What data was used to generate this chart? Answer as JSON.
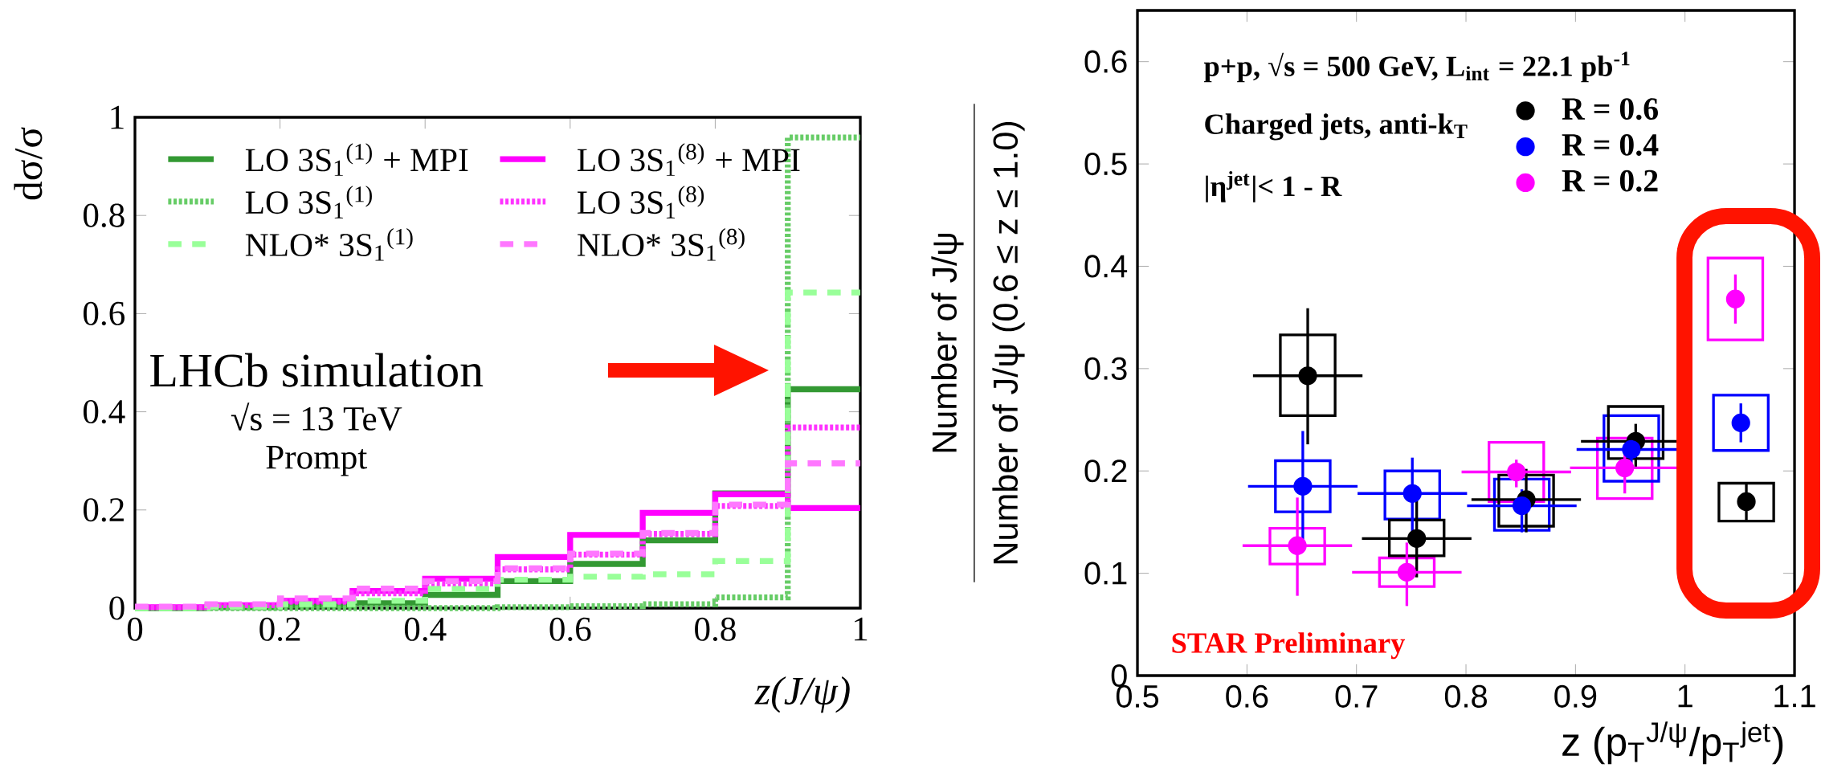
{
  "chart_data": [
    {
      "type": "histogram",
      "xlabel": "z(J/ψ)",
      "ylabel": "dσ/σ",
      "annotations": [
        "LHCb simulation",
        "√s = 13 TeV",
        "Prompt"
      ],
      "bins": [
        0,
        0.1,
        0.2,
        0.3,
        0.4,
        0.5,
        0.6,
        0.7,
        0.8,
        0.9,
        1
      ],
      "series": [
        {
          "name": "LO 3S$_{1}$$^{(1)}$ + MPI",
          "color": "#339933",
          "line_style": "solid",
          "values": [
            0,
            0.002,
            0.005,
            0.01,
            0.027,
            0.055,
            0.09,
            0.138,
            0.234,
            0.446
          ]
        },
        {
          "name": "LO 3S$_{1}$$^{(8)}$ + MPI",
          "color": "#ff00ff",
          "line_style": "solid",
          "values": [
            0.002,
            0.006,
            0.015,
            0.035,
            0.06,
            0.104,
            0.149,
            0.194,
            0.232,
            0.204
          ]
        },
        {
          "name": "LO 3S$_{1}$$^{(1)}$",
          "color": "#66cc66",
          "line_style": "dotted",
          "values": [
            0,
            0,
            0,
            0,
            0,
            0.002,
            0.004,
            0.008,
            0.022,
            0.959
          ]
        },
        {
          "name": "LO 3S$_{1}$$^{(8)}$",
          "color": "#ff33ff",
          "line_style": "dotted",
          "values": [
            0.002,
            0.006,
            0.013,
            0.03,
            0.05,
            0.079,
            0.109,
            0.151,
            0.208,
            0.368
          ]
        },
        {
          "name": "NLO* 3S$_{1}$$^{(1)}$",
          "color": "#99ff99",
          "line_style": "dashed",
          "values": [
            0,
            0.003,
            0.008,
            0.015,
            0.039,
            0.058,
            0.064,
            0.069,
            0.096,
            0.643
          ]
        },
        {
          "name": "NLO* 3S$_{1}$$^{(8)}$",
          "color": "#ff77ff",
          "line_style": "dashed",
          "values": [
            0.003,
            0.008,
            0.02,
            0.04,
            0.055,
            0.081,
            0.111,
            0.153,
            0.211,
            0.295
          ]
        }
      ],
      "xlim": [
        0,
        1
      ],
      "ylim": [
        0,
        1
      ],
      "xticks": [
        0,
        0.2,
        0.4,
        0.6,
        0.8,
        1
      ],
      "yticks": [
        0,
        0.2,
        0.4,
        0.6,
        0.8,
        1
      ],
      "legend": "top left"
    },
    {
      "type": "scatter",
      "xlabel": "z (p$_{T}$$^{J/ψ}$/p$_{T}$$^{jet}$)",
      "ylabel": [
        "Number of J/ψ",
        "Number of J/ψ (0.6 ≤ z ≤ 1.0)"
      ],
      "annotations": [
        "p+p,  √s = 500 GeV, L$_{int}$ = 22.1 pb$^{-1}$",
        "Charged jets, anti-k$_{T}$",
        "|η$^{jet}$|< 1 - R",
        "STAR Preliminary"
      ],
      "series": [
        {
          "type": "bar",
          "color": "#ff00ff",
          "x": [
            0.646,
            0.746,
            0.846,
            0.945,
            1.046
          ],
          "base": [
            0.109,
            0.087,
            0.17,
            0.173,
            0.328
          ],
          "values": [
            0.035,
            0.028,
            0.058,
            0.059,
            0.08
          ]
        },
        {
          "type": "bar",
          "color": "#0000ff",
          "x": [
            0.651,
            0.751,
            0.851,
            0.951,
            1.051
          ],
          "base": [
            0.16,
            0.153,
            0.142,
            0.19,
            0.22
          ],
          "values": [
            0.05,
            0.047,
            0.05,
            0.064,
            0.054
          ]
        },
        {
          "type": "bar",
          "color": "#000000",
          "x": [
            0.6555,
            0.755,
            0.855,
            0.955,
            1.056
          ],
          "base": [
            0.254,
            0.117,
            0.146,
            0.212,
            0.151
          ],
          "values": [
            0.079,
            0.035,
            0.05,
            0.051,
            0.037
          ]
        },
        {
          "name": "R = 0.6",
          "color": "#000000",
          "x": [
            0.6555,
            0.755,
            0.855,
            0.955,
            1.056
          ],
          "values": [
            0.293,
            0.134,
            0.172,
            0.229,
            0.17
          ],
          "errors": [
            [
              0.226,
              0.359
            ],
            [
              0.096,
              0.185
            ],
            [
              0.14,
              0.202
            ],
            [
              0.204,
              0.246
            ],
            [
              0.152,
              0.188
            ]
          ],
          "xerrors": [
            0.05,
            0.05,
            0.05,
            0.05,
            null
          ]
        },
        {
          "name": "R = 0.4",
          "color": "#0000ff",
          "x": [
            0.651,
            0.751,
            0.851,
            0.951,
            1.051
          ],
          "values": [
            0.185,
            0.178,
            0.166,
            0.221,
            0.247
          ],
          "errors": [
            [
              0.133,
              0.239
            ],
            [
              0.141,
              0.213
            ],
            [
              0.14,
              0.182
            ],
            [
              0.208,
              0.234
            ],
            [
              0.228,
              0.266
            ]
          ],
          "xerrors": [
            0.05,
            0.05,
            0.05,
            0.05,
            null
          ]
        },
        {
          "name": "R = 0.2",
          "color": "#ff00ff",
          "x": [
            0.646,
            0.746,
            0.846,
            0.945,
            1.046
          ],
          "values": [
            0.127,
            0.101,
            0.199,
            0.203,
            0.368
          ],
          "errors": [
            [
              0.078,
              0.174
            ],
            [
              0.068,
              0.13
            ],
            [
              0.184,
              0.211
            ],
            [
              0.178,
              0.218
            ],
            [
              0.344,
              0.392
            ]
          ],
          "xerrors": [
            0.05,
            0.05,
            0.05,
            0.05,
            null
          ]
        }
      ],
      "xlim": [
        0.5,
        1.1
      ],
      "ylim": [
        0,
        0.65
      ],
      "xticks": [
        0.5,
        0.6,
        0.7,
        0.8,
        0.9,
        1,
        1.1
      ],
      "yticks": [
        0,
        0.1,
        0.2,
        0.3,
        0.4,
        0.5,
        0.6
      ],
      "legend": "top"
    }
  ]
}
